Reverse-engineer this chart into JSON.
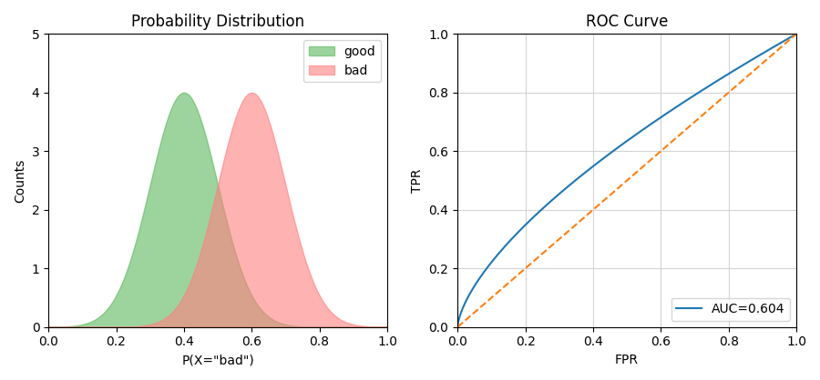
{
  "left_title": "Probability Distribution",
  "right_title": "ROC Curve",
  "left_xlabel": "P(X=\"bad\")",
  "left_ylabel": "Counts",
  "right_xlabel": "FPR",
  "right_ylabel": "TPR",
  "good_mean": 0.4,
  "good_std": 0.1,
  "bad_mean": 0.6,
  "bad_std": 0.1,
  "good_color": "#5cb85c",
  "bad_color": "#ff7f7f",
  "good_alpha": 0.6,
  "bad_alpha": 0.6,
  "good_label": "good",
  "bad_label": "bad",
  "roc_color": "#1f77b4",
  "diag_color": "#ff7f0e",
  "auc_label": "AUC=0.604",
  "auc_value": 0.604,
  "roc_power": 0.656,
  "left_xlim": [
    0.0,
    1.0
  ],
  "left_ylim": [
    0,
    5
  ],
  "right_xlim": [
    0.0,
    1.0
  ],
  "right_ylim": [
    0.0,
    1.0
  ],
  "figsize": [
    9.0,
    4.18
  ],
  "dpi": 100
}
